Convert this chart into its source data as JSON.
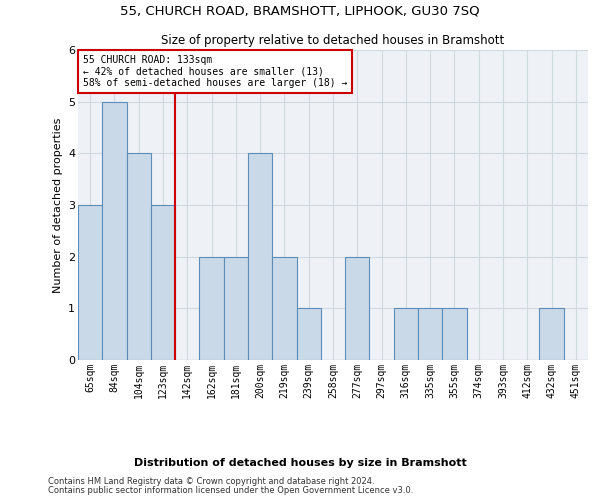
{
  "title1": "55, CHURCH ROAD, BRAMSHOTT, LIPHOOK, GU30 7SQ",
  "title2": "Size of property relative to detached houses in Bramshott",
  "xlabel": "Distribution of detached houses by size in Bramshott",
  "ylabel": "Number of detached properties",
  "categories": [
    "65sqm",
    "84sqm",
    "104sqm",
    "123sqm",
    "142sqm",
    "162sqm",
    "181sqm",
    "200sqm",
    "219sqm",
    "239sqm",
    "258sqm",
    "277sqm",
    "297sqm",
    "316sqm",
    "335sqm",
    "355sqm",
    "374sqm",
    "393sqm",
    "412sqm",
    "432sqm",
    "451sqm"
  ],
  "values": [
    3,
    5,
    4,
    3,
    0,
    2,
    2,
    4,
    2,
    1,
    0,
    2,
    0,
    1,
    1,
    1,
    0,
    0,
    0,
    1,
    0
  ],
  "bar_color": "#c9d9e8",
  "bar_edge_color": "#5b8db8",
  "vline_index": 3,
  "annotation_line1": "55 CHURCH ROAD: 133sqm",
  "annotation_line2": "← 42% of detached houses are smaller (13)",
  "annotation_line3": "58% of semi-detached houses are larger (18) →",
  "vline_color": "#cc0000",
  "box_edge_color": "#cc0000",
  "ylim": [
    0,
    6
  ],
  "yticks": [
    0,
    1,
    2,
    3,
    4,
    5,
    6
  ],
  "footer1": "Contains HM Land Registry data © Crown copyright and database right 2024.",
  "footer2": "Contains public sector information licensed under the Open Government Licence v3.0.",
  "grid_color": "#d0d8e0",
  "bg_color": "#eef2f7"
}
